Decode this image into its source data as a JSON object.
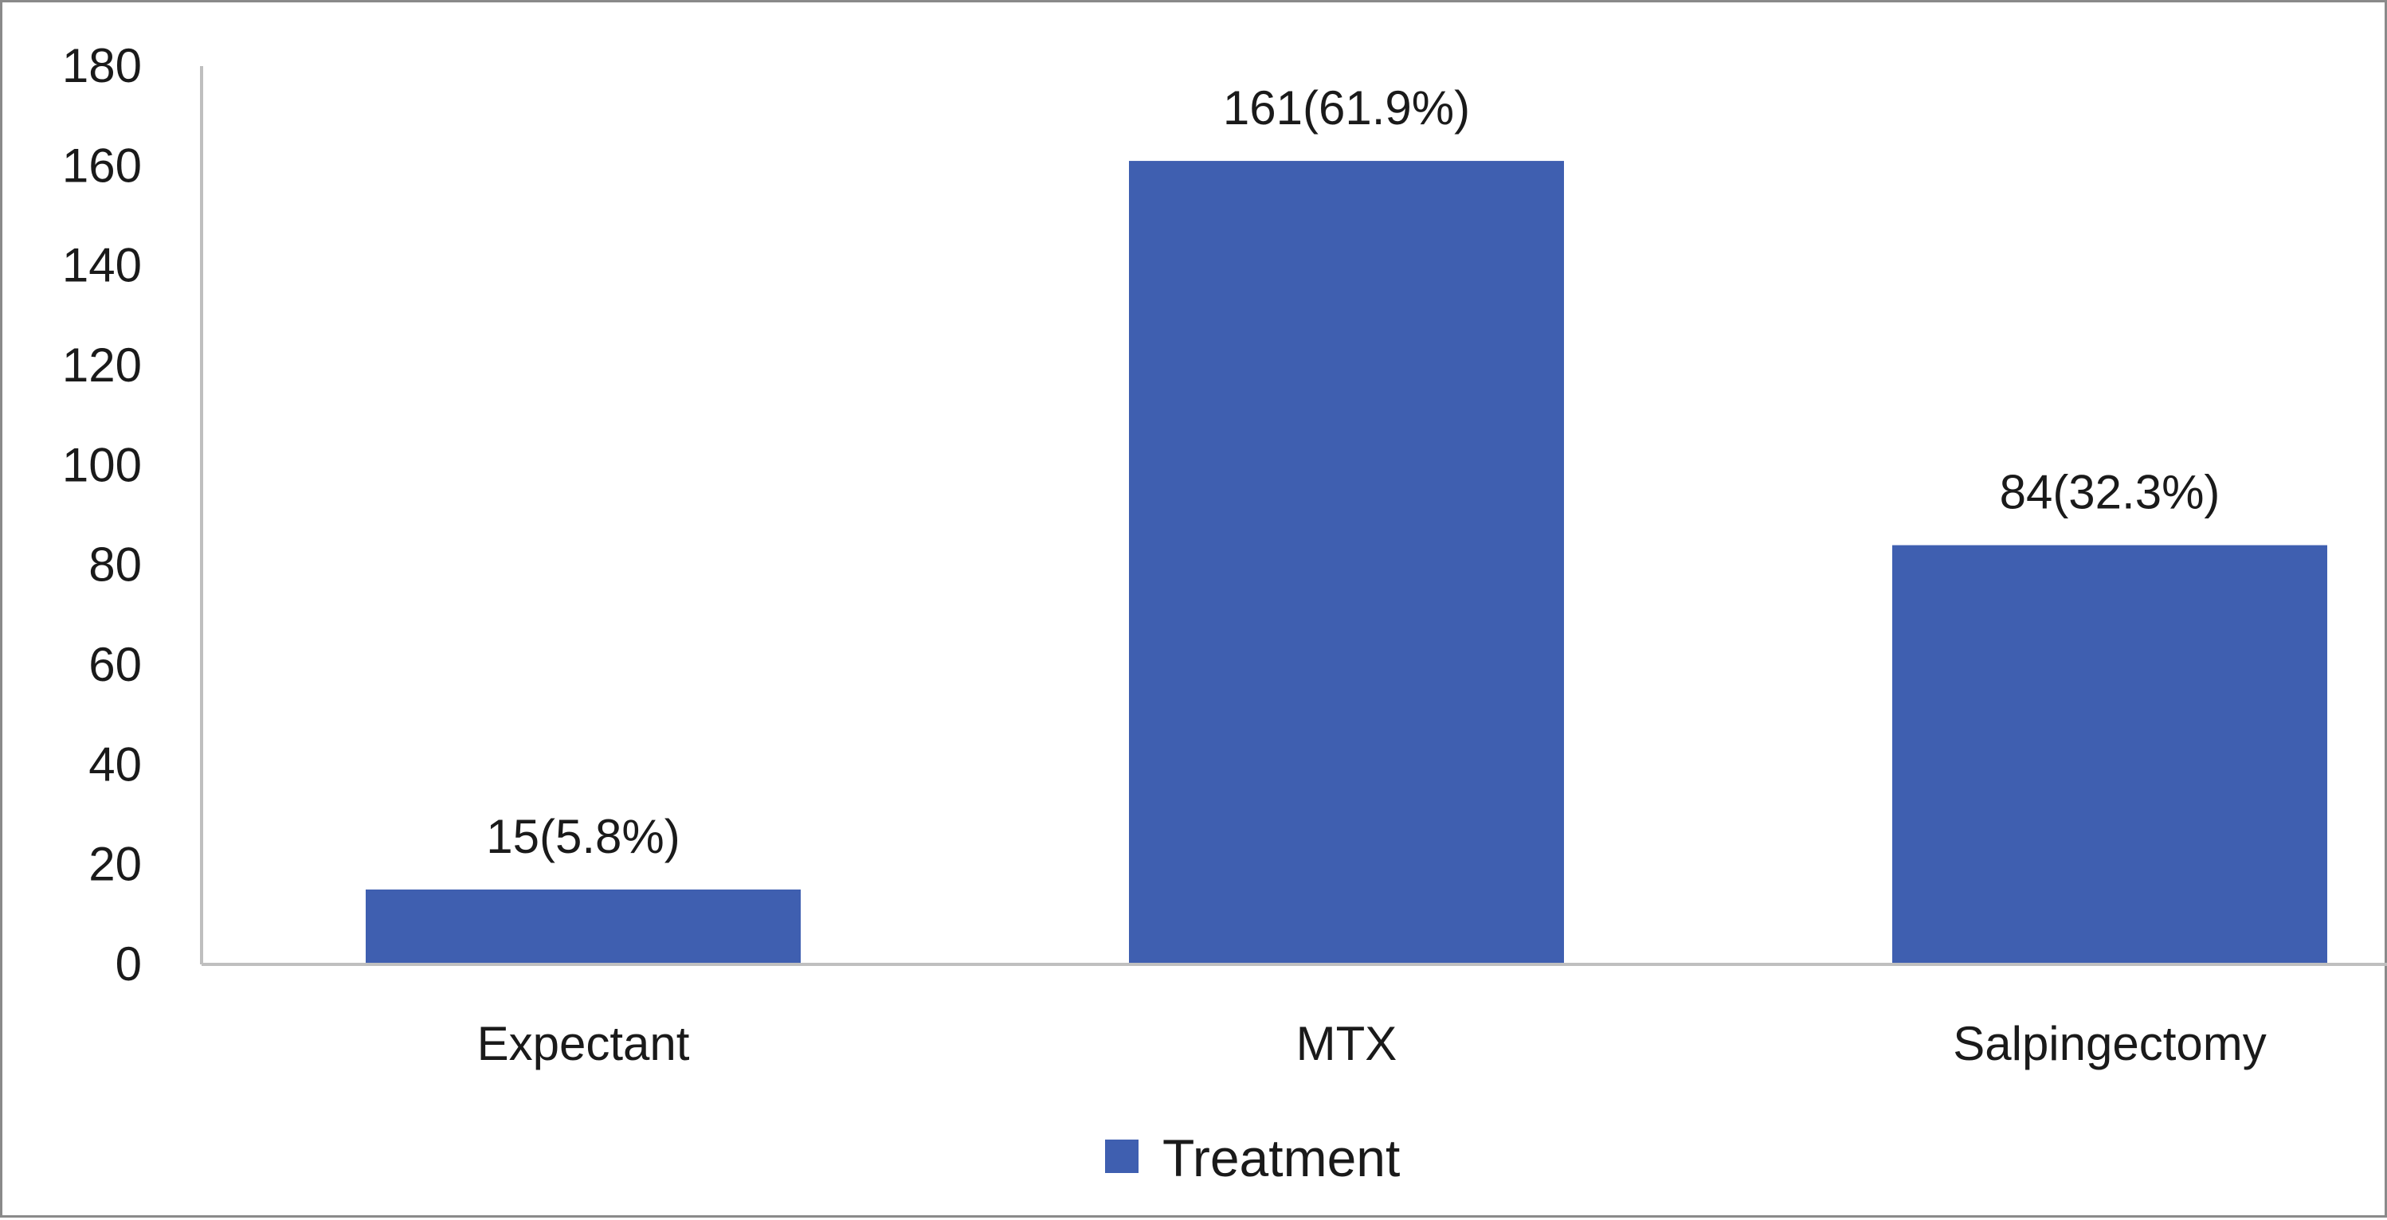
{
  "chart_data": {
    "type": "bar",
    "title": "",
    "xlabel": "",
    "ylabel": "",
    "categories": [
      "Expectant",
      "MTX",
      "Salpingectomy"
    ],
    "series": [
      {
        "name": "Treatment",
        "values": [
          15,
          161,
          84
        ],
        "data_labels": [
          "15(5.8%)",
          "161(61.9%)",
          "84(32.3%)"
        ],
        "color": "#3f5fb0"
      }
    ],
    "ylim": [
      0,
      180
    ],
    "yticks": [
      "0",
      "20",
      "40",
      "60",
      "80",
      "100",
      "120",
      "140",
      "160",
      "180"
    ],
    "grid": false,
    "legend": "bottom-center",
    "axis_color": "#bfbfbf",
    "text_color": "#1a1a1a",
    "border_color": "#8a8a8a"
  }
}
